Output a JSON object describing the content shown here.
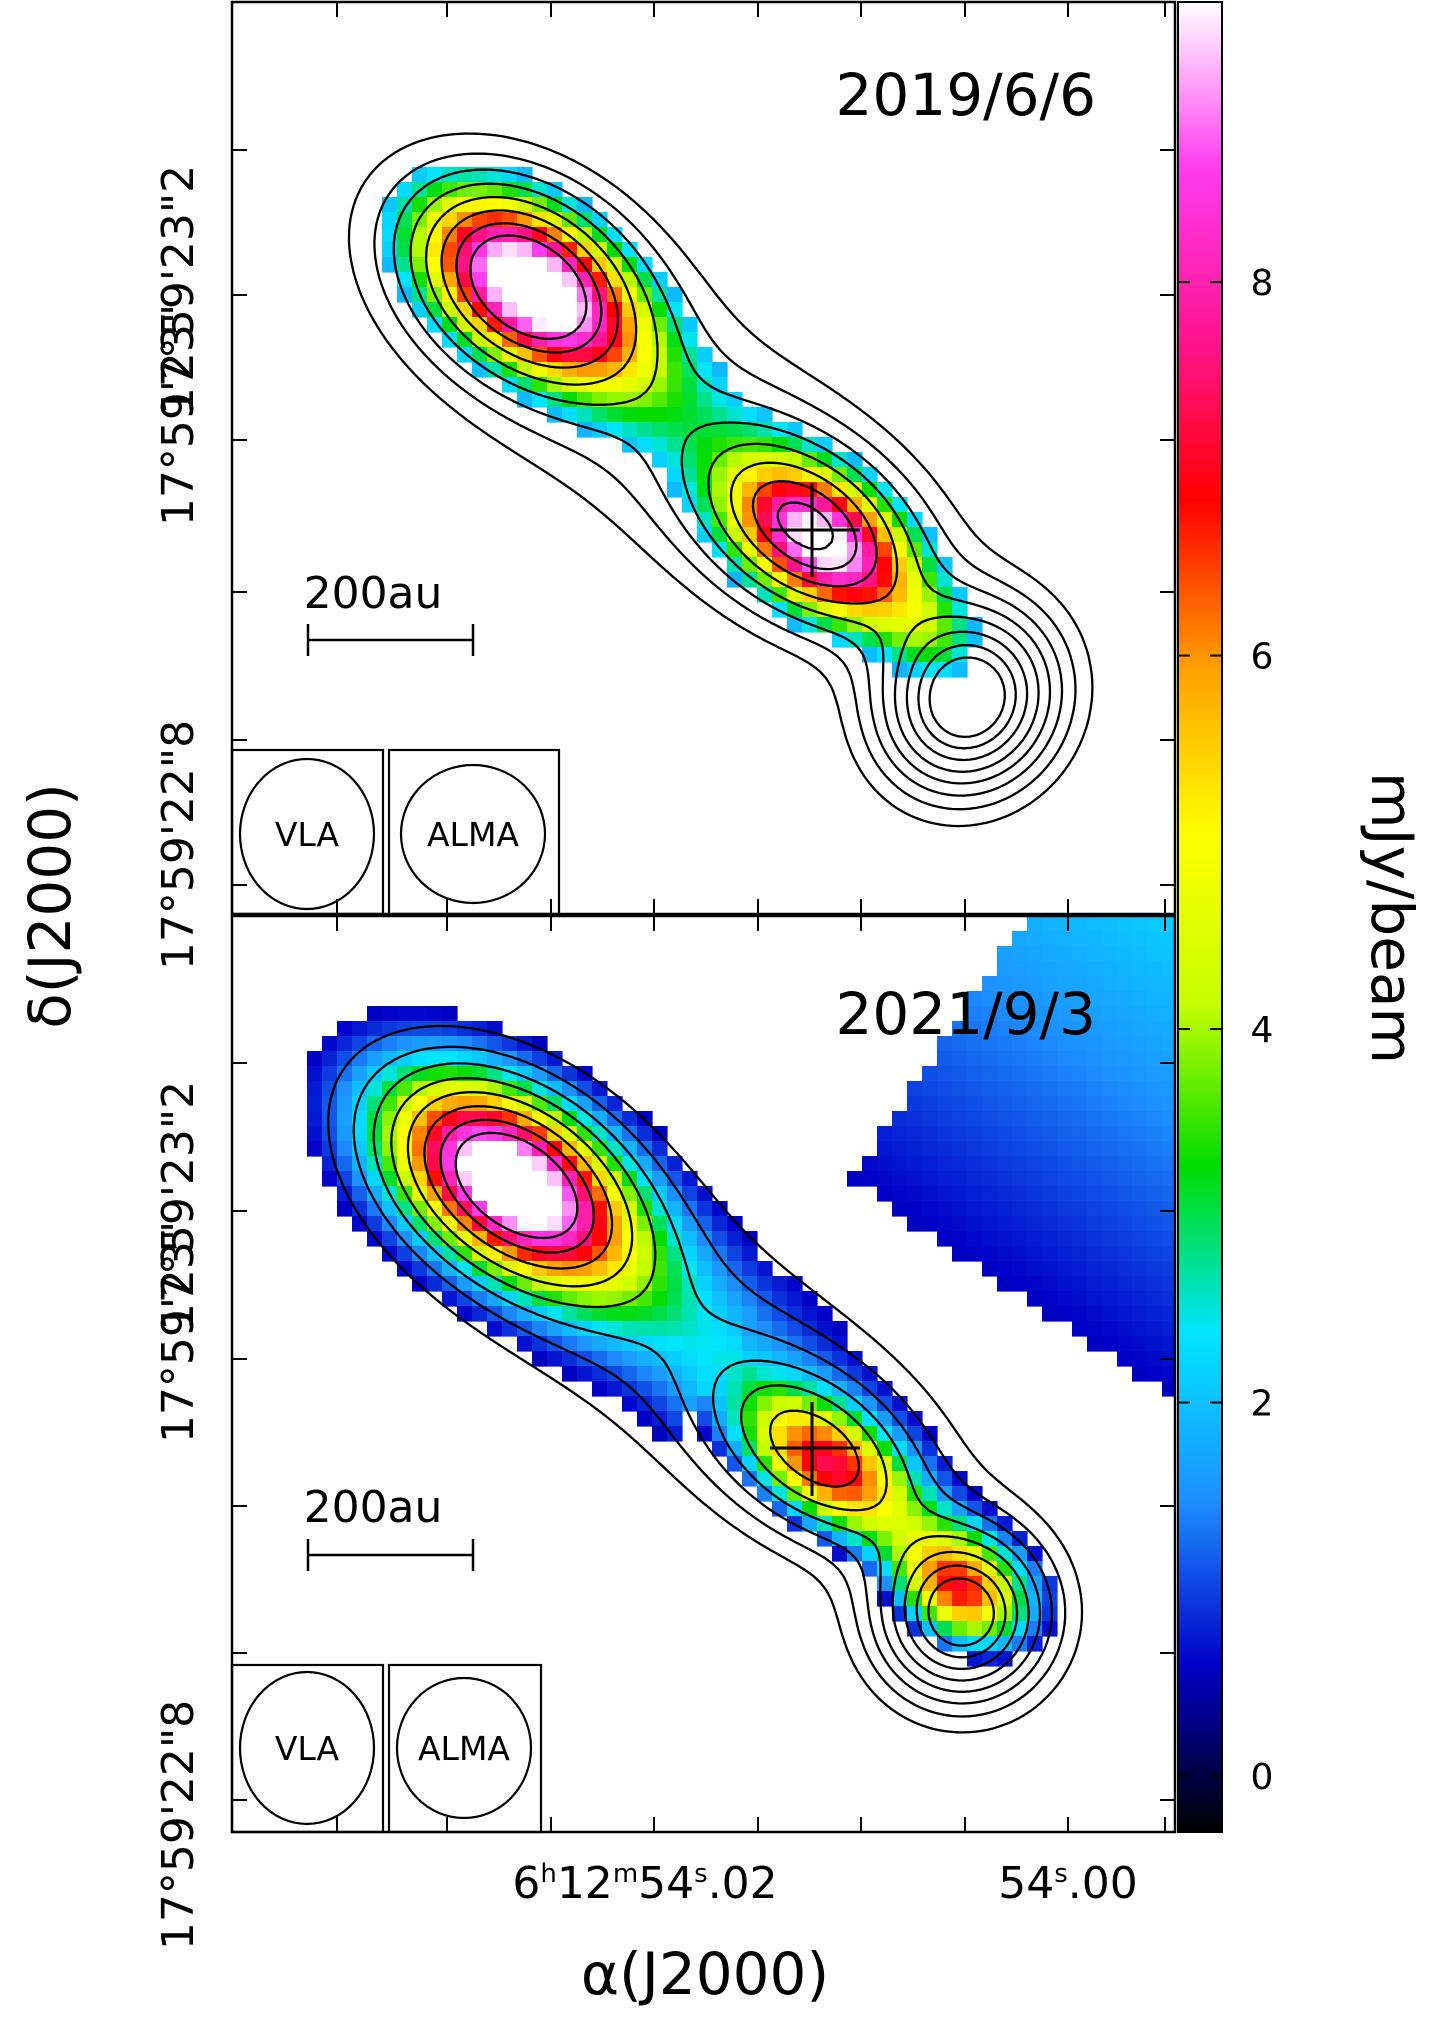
{
  "chart_data": {
    "type": "heatmap",
    "x_axis": {
      "label": "α(J2000)",
      "tick_labels": [
        {
          "id": "ra_54_02",
          "hh": "6",
          "h_sup": "h",
          "mm": "12",
          "m_sup": "m",
          "ss": "54",
          "s_sup": "s",
          "frac": ".02"
        },
        {
          "id": "ra_54_00",
          "ss": "54",
          "s_sup": "s",
          "frac": ".00"
        }
      ]
    },
    "y_axis": {
      "label": "δ(J2000)",
      "tick_labels": [
        "17°59'23\"2",
        "17°59'23\"",
        "17°59'22\"8"
      ]
    },
    "colorbar": {
      "label": "mJy/beam",
      "min": -0.3,
      "max": 9.5,
      "ticks": [
        "0",
        "2",
        "4",
        "6",
        "8"
      ],
      "tick_values": [
        0,
        2,
        4,
        6,
        8
      ],
      "colormap": [
        "#000000",
        "#0000c8",
        "#1e90ff",
        "#00e5ff",
        "#00dc00",
        "#c8ff00",
        "#ffff00",
        "#ffa000",
        "#ff0000",
        "#ff1493",
        "#ff3cf0",
        "#ffffff"
      ]
    },
    "panels": [
      {
        "date": "2019/6/6",
        "scale_bar": "200au",
        "beams": [
          "VLA",
          "ALMA"
        ],
        "marker": "+",
        "peaks_mJy": [
          9.5,
          9.0
        ],
        "contours": "VLA"
      },
      {
        "date": "2021/9/3",
        "scale_bar": "200au",
        "beams": [
          "VLA",
          "ALMA"
        ],
        "marker": "+",
        "peaks_mJy": [
          9.5,
          7.0,
          7.2
        ],
        "contours": "VLA"
      }
    ]
  }
}
